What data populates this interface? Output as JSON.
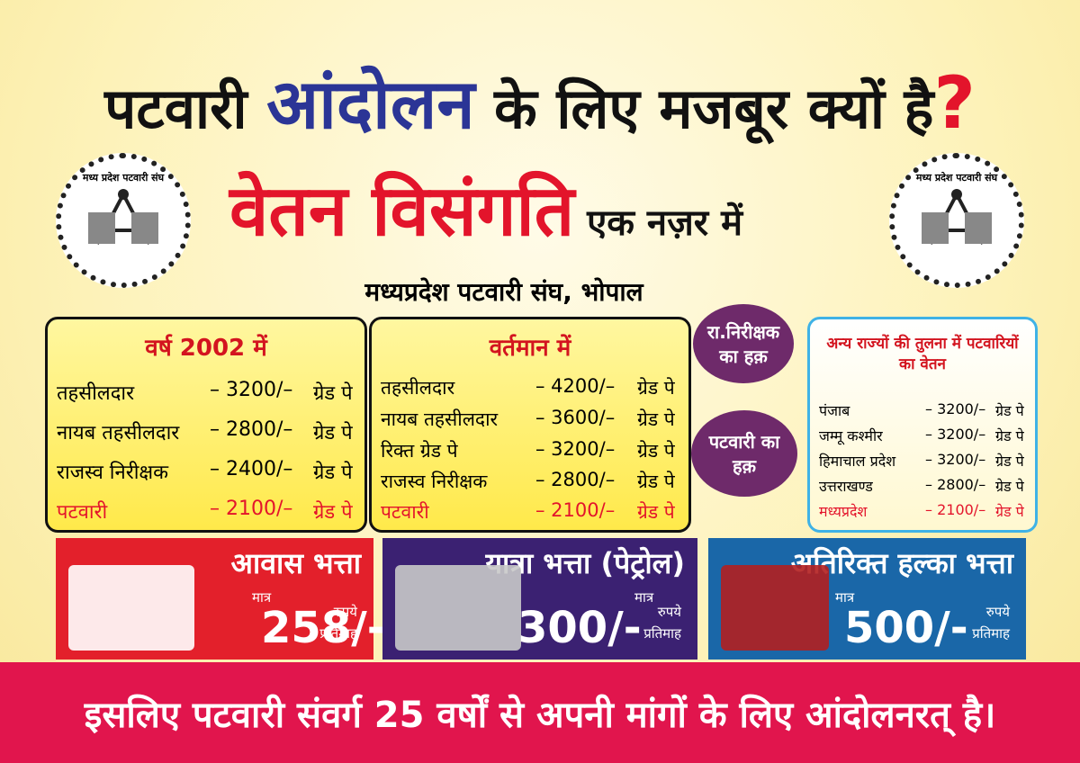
{
  "header": {
    "title": {
      "part1": "पटवारी",
      "highlight": "आंदोलन",
      "part2": "के लिए मजबूर क्यों है",
      "mark": "?"
    },
    "subtitle": {
      "highlight": "वेतन विसंगति",
      "rest": "एक नज़र में"
    },
    "logo_text": "मध्य प्रदेश पटवारी संघ",
    "org": "मध्यप्रदेश पटवारी संघ, भोपाल"
  },
  "panels": [
    {
      "title": "वर्ष 2002 में",
      "rows": [
        {
          "post": "तहसीलदार",
          "pay": "– 3200/–",
          "grade": "ग्रेड पे"
        },
        {
          "post": "नायब तहसीलदार",
          "pay": "– 2800/–",
          "grade": "ग्रेड पे"
        },
        {
          "post": "राजस्व निरीक्षक",
          "pay": "– 2400/–",
          "grade": "ग्रेड पे"
        },
        {
          "post": "पटवारी",
          "pay": "– 2100/–",
          "grade": "ग्रेड पे"
        }
      ]
    },
    {
      "title": "वर्तमान में",
      "rows": [
        {
          "post": "तहसीलदार",
          "pay": "– 4200/–",
          "grade": "ग्रेड पे"
        },
        {
          "post": "नायब तहसीलदार",
          "pay": "– 3600/–",
          "grade": "ग्रेड पे"
        },
        {
          "post": "रिक्त ग्रेड पे",
          "pay": "– 3200/–",
          "grade": "ग्रेड पे"
        },
        {
          "post": "राजस्व निरीक्षक",
          "pay": "– 2800/–",
          "grade": "ग्रेड पे"
        },
        {
          "post": "पटवारी",
          "pay": "– 2100/–",
          "grade": "ग्रेड पे"
        }
      ]
    },
    {
      "title": "अन्य राज्यों की तुलना में पटवारियों का वेतन",
      "rows": [
        {
          "post": "पंजाब",
          "pay": "– 3200/–",
          "grade": "ग्रेड पे"
        },
        {
          "post": "जम्मू कश्मीर",
          "pay": "– 3200/–",
          "grade": "ग्रेड पे"
        },
        {
          "post": "हिमाचाल प्रदेश",
          "pay": "– 3200/–",
          "grade": "ग्रेड पे"
        },
        {
          "post": "उत्तराखण्ड",
          "pay": "– 2800/–",
          "grade": "ग्रेड पे"
        },
        {
          "post": "मध्यप्रदेश",
          "pay": "– 2100/–",
          "grade": "ग्रेड पे"
        }
      ]
    }
  ],
  "bubbles": [
    "रा.निरीक्षक का हक़",
    "पटवारी का हक़"
  ],
  "allowances": [
    {
      "title": "आवास भत्ता",
      "prefix": "मात्र",
      "amount": "258/-",
      "unit": "रुपये",
      "period": "प्रतिमाह"
    },
    {
      "title": "यात्रा भत्ता (पेट्रोल)",
      "prefix": "मात्र",
      "amount": "300/-",
      "unit": "रुपये",
      "period": "प्रतिमाह"
    },
    {
      "title": "अतिरिक्त हल्का भत्ता",
      "prefix": "मात्र",
      "amount": "500/-",
      "unit": "रुपये",
      "period": "प्रतिमाह"
    }
  ],
  "footer": "इसलिए पटवारी संवर्ग 25 वर्षों से अपनी मांगों के लिए आंदोलनरत् है।"
}
